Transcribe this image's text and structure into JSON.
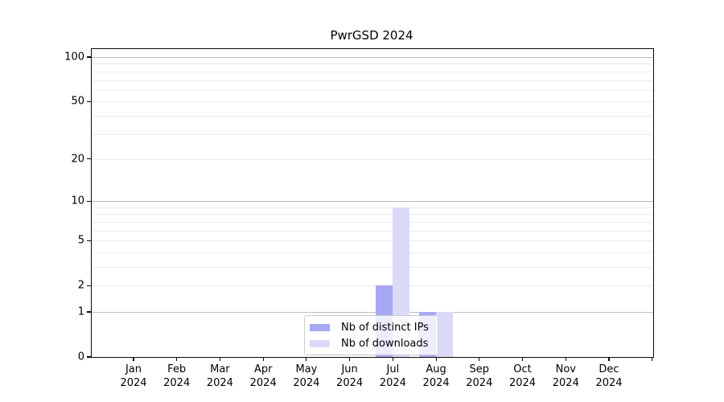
{
  "chart_data": {
    "type": "bar",
    "title": "PwrGSD 2024",
    "categories": [
      "Jan",
      "Feb",
      "Mar",
      "Apr",
      "May",
      "Jun",
      "Jul",
      "Aug",
      "Sep",
      "Oct",
      "Nov",
      "Dec"
    ],
    "x_year_label": "2024",
    "series": [
      {
        "name": "Nb of distinct IPs",
        "color": "#a7a7f3",
        "values": [
          0,
          0,
          0,
          0,
          0,
          0,
          2,
          1,
          0,
          0,
          0,
          0
        ]
      },
      {
        "name": "Nb of downloads",
        "color": "#dadaf8",
        "values": [
          0,
          0,
          0,
          0,
          0,
          0,
          9,
          1,
          0,
          0,
          0,
          0
        ]
      }
    ],
    "yticks": [
      0,
      1,
      2,
      5,
      10,
      20,
      50,
      100
    ],
    "yscale": "log10(1+v)",
    "ylim": [
      0,
      113
    ],
    "xlabel": "",
    "ylabel": "",
    "grid": "horizontal-only",
    "grid_major_at": [
      1,
      10,
      100
    ],
    "legend_position": "bottom-center",
    "colors": {
      "spine": "#0a0a0a",
      "grid_major": "#bdbdbd",
      "grid_minor": "#ebebeb",
      "legend_border": "#cccccc"
    }
  }
}
